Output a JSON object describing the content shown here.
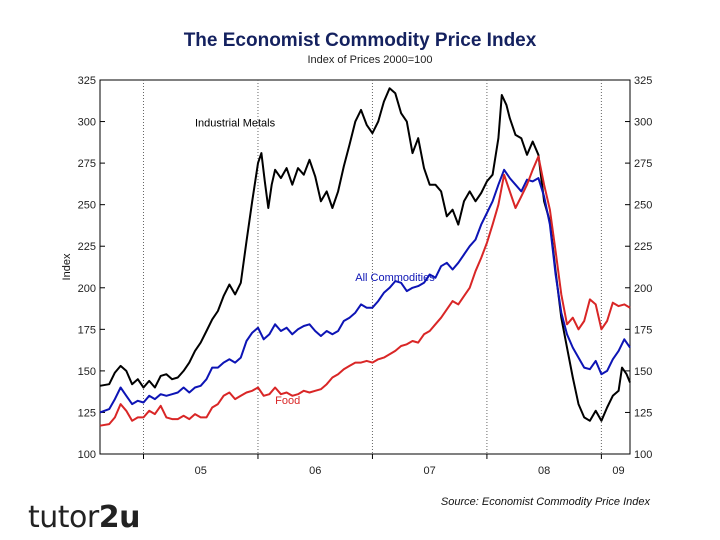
{
  "chart_data": {
    "type": "line",
    "title": "The Economist Commodity Price Index",
    "subtitle": "Index of Prices 2000=100",
    "ylabel": "Index",
    "xlabel": "",
    "ylim": [
      100,
      325
    ],
    "yticks": [
      100,
      125,
      150,
      175,
      200,
      225,
      250,
      275,
      300,
      325
    ],
    "xlim": [
      2004.62,
      2009.25
    ],
    "xtick_labels": [
      {
        "label": "05",
        "at": 2005.5
      },
      {
        "label": "06",
        "at": 2006.5
      },
      {
        "label": "07",
        "at": 2007.5
      },
      {
        "label": "08",
        "at": 2008.5
      },
      {
        "label": "09",
        "at": 2009.15
      }
    ],
    "year_boundaries": [
      2005,
      2006,
      2007,
      2008,
      2009
    ],
    "grid": false,
    "series": [
      {
        "name": "Industrial Metals",
        "label": "Industrial Metals",
        "color": "#000000",
        "points": [
          [
            2004.62,
            141
          ],
          [
            2004.7,
            142
          ],
          [
            2004.75,
            149
          ],
          [
            2004.8,
            153
          ],
          [
            2004.85,
            150
          ],
          [
            2004.9,
            142
          ],
          [
            2004.95,
            145
          ],
          [
            2005.0,
            140
          ],
          [
            2005.05,
            144
          ],
          [
            2005.1,
            140
          ],
          [
            2005.15,
            147
          ],
          [
            2005.2,
            148
          ],
          [
            2005.25,
            145
          ],
          [
            2005.3,
            146
          ],
          [
            2005.35,
            150
          ],
          [
            2005.4,
            155
          ],
          [
            2005.45,
            162
          ],
          [
            2005.5,
            167
          ],
          [
            2005.55,
            174
          ],
          [
            2005.6,
            181
          ],
          [
            2005.65,
            186
          ],
          [
            2005.7,
            195
          ],
          [
            2005.75,
            202
          ],
          [
            2005.8,
            196
          ],
          [
            2005.85,
            203
          ],
          [
            2005.9,
            228
          ],
          [
            2005.95,
            252
          ],
          [
            2006.0,
            275
          ],
          [
            2006.03,
            281
          ],
          [
            2006.06,
            264
          ],
          [
            2006.09,
            248
          ],
          [
            2006.12,
            262
          ],
          [
            2006.15,
            271
          ],
          [
            2006.2,
            266
          ],
          [
            2006.25,
            272
          ],
          [
            2006.3,
            262
          ],
          [
            2006.35,
            272
          ],
          [
            2006.4,
            268
          ],
          [
            2006.45,
            277
          ],
          [
            2006.5,
            267
          ],
          [
            2006.55,
            252
          ],
          [
            2006.6,
            258
          ],
          [
            2006.65,
            248
          ],
          [
            2006.7,
            258
          ],
          [
            2006.75,
            273
          ],
          [
            2006.8,
            286
          ],
          [
            2006.85,
            300
          ],
          [
            2006.9,
            307
          ],
          [
            2006.95,
            298
          ],
          [
            2007.0,
            293
          ],
          [
            2007.05,
            300
          ],
          [
            2007.1,
            312
          ],
          [
            2007.15,
            320
          ],
          [
            2007.2,
            317
          ],
          [
            2007.25,
            305
          ],
          [
            2007.3,
            300
          ],
          [
            2007.35,
            281
          ],
          [
            2007.4,
            290
          ],
          [
            2007.45,
            272
          ],
          [
            2007.5,
            262
          ],
          [
            2007.55,
            262
          ],
          [
            2007.6,
            258
          ],
          [
            2007.65,
            243
          ],
          [
            2007.7,
            247
          ],
          [
            2007.75,
            238
          ],
          [
            2007.8,
            252
          ],
          [
            2007.85,
            258
          ],
          [
            2007.9,
            252
          ],
          [
            2007.95,
            257
          ],
          [
            2008.0,
            264
          ],
          [
            2008.05,
            268
          ],
          [
            2008.1,
            290
          ],
          [
            2008.13,
            316
          ],
          [
            2008.17,
            310
          ],
          [
            2008.2,
            302
          ],
          [
            2008.25,
            292
          ],
          [
            2008.3,
            290
          ],
          [
            2008.35,
            280
          ],
          [
            2008.4,
            288
          ],
          [
            2008.45,
            280
          ],
          [
            2008.5,
            252
          ],
          [
            2008.55,
            240
          ],
          [
            2008.6,
            210
          ],
          [
            2008.65,
            182
          ],
          [
            2008.7,
            164
          ],
          [
            2008.75,
            146
          ],
          [
            2008.8,
            130
          ],
          [
            2008.85,
            122
          ],
          [
            2008.9,
            120
          ],
          [
            2008.95,
            126
          ],
          [
            2009.0,
            120
          ],
          [
            2009.05,
            128
          ],
          [
            2009.1,
            135
          ],
          [
            2009.15,
            138
          ],
          [
            2009.18,
            152
          ],
          [
            2009.22,
            148
          ],
          [
            2009.25,
            143
          ]
        ]
      },
      {
        "name": "All Commodities",
        "label": "All Commodities",
        "color": "#0d14b5",
        "points": [
          [
            2004.62,
            125
          ],
          [
            2004.7,
            127
          ],
          [
            2004.75,
            133
          ],
          [
            2004.8,
            140
          ],
          [
            2004.85,
            135
          ],
          [
            2004.9,
            130
          ],
          [
            2004.95,
            132
          ],
          [
            2005.0,
            131
          ],
          [
            2005.05,
            135
          ],
          [
            2005.1,
            133
          ],
          [
            2005.15,
            136
          ],
          [
            2005.2,
            135
          ],
          [
            2005.25,
            136
          ],
          [
            2005.3,
            137
          ],
          [
            2005.35,
            140
          ],
          [
            2005.4,
            137
          ],
          [
            2005.45,
            140
          ],
          [
            2005.5,
            141
          ],
          [
            2005.55,
            145
          ],
          [
            2005.6,
            152
          ],
          [
            2005.65,
            152
          ],
          [
            2005.7,
            155
          ],
          [
            2005.75,
            157
          ],
          [
            2005.8,
            155
          ],
          [
            2005.85,
            158
          ],
          [
            2005.9,
            168
          ],
          [
            2005.95,
            173
          ],
          [
            2006.0,
            176
          ],
          [
            2006.05,
            169
          ],
          [
            2006.1,
            172
          ],
          [
            2006.15,
            178
          ],
          [
            2006.2,
            174
          ],
          [
            2006.25,
            176
          ],
          [
            2006.3,
            172
          ],
          [
            2006.35,
            175
          ],
          [
            2006.4,
            177
          ],
          [
            2006.45,
            178
          ],
          [
            2006.5,
            174
          ],
          [
            2006.55,
            171
          ],
          [
            2006.6,
            174
          ],
          [
            2006.65,
            172
          ],
          [
            2006.7,
            174
          ],
          [
            2006.75,
            180
          ],
          [
            2006.8,
            182
          ],
          [
            2006.85,
            185
          ],
          [
            2006.9,
            190
          ],
          [
            2006.95,
            188
          ],
          [
            2007.0,
            188
          ],
          [
            2007.05,
            192
          ],
          [
            2007.1,
            197
          ],
          [
            2007.15,
            200
          ],
          [
            2007.2,
            204
          ],
          [
            2007.25,
            203
          ],
          [
            2007.3,
            198
          ],
          [
            2007.35,
            200
          ],
          [
            2007.4,
            201
          ],
          [
            2007.45,
            203
          ],
          [
            2007.5,
            208
          ],
          [
            2007.55,
            206
          ],
          [
            2007.6,
            213
          ],
          [
            2007.65,
            215
          ],
          [
            2007.7,
            211
          ],
          [
            2007.75,
            215
          ],
          [
            2007.8,
            220
          ],
          [
            2007.85,
            225
          ],
          [
            2007.9,
            229
          ],
          [
            2007.95,
            238
          ],
          [
            2008.0,
            245
          ],
          [
            2008.05,
            252
          ],
          [
            2008.1,
            262
          ],
          [
            2008.15,
            271
          ],
          [
            2008.2,
            266
          ],
          [
            2008.25,
            262
          ],
          [
            2008.3,
            258
          ],
          [
            2008.35,
            265
          ],
          [
            2008.4,
            264
          ],
          [
            2008.45,
            266
          ],
          [
            2008.5,
            255
          ],
          [
            2008.55,
            238
          ],
          [
            2008.6,
            208
          ],
          [
            2008.65,
            185
          ],
          [
            2008.7,
            172
          ],
          [
            2008.75,
            164
          ],
          [
            2008.8,
            158
          ],
          [
            2008.85,
            152
          ],
          [
            2008.9,
            151
          ],
          [
            2008.95,
            156
          ],
          [
            2009.0,
            148
          ],
          [
            2009.05,
            150
          ],
          [
            2009.1,
            157
          ],
          [
            2009.15,
            162
          ],
          [
            2009.2,
            169
          ],
          [
            2009.25,
            164
          ]
        ]
      },
      {
        "name": "Food",
        "label": "Food",
        "color": "#d92626",
        "points": [
          [
            2004.62,
            117
          ],
          [
            2004.7,
            118
          ],
          [
            2004.75,
            122
          ],
          [
            2004.8,
            130
          ],
          [
            2004.85,
            126
          ],
          [
            2004.9,
            120
          ],
          [
            2004.95,
            122
          ],
          [
            2005.0,
            122
          ],
          [
            2005.05,
            126
          ],
          [
            2005.1,
            124
          ],
          [
            2005.15,
            129
          ],
          [
            2005.2,
            122
          ],
          [
            2005.25,
            121
          ],
          [
            2005.3,
            121
          ],
          [
            2005.35,
            123
          ],
          [
            2005.4,
            121
          ],
          [
            2005.45,
            124
          ],
          [
            2005.5,
            122
          ],
          [
            2005.55,
            122
          ],
          [
            2005.6,
            128
          ],
          [
            2005.65,
            130
          ],
          [
            2005.7,
            135
          ],
          [
            2005.75,
            137
          ],
          [
            2005.8,
            133
          ],
          [
            2005.85,
            135
          ],
          [
            2005.9,
            137
          ],
          [
            2005.95,
            138
          ],
          [
            2006.0,
            140
          ],
          [
            2006.05,
            135
          ],
          [
            2006.1,
            136
          ],
          [
            2006.15,
            140
          ],
          [
            2006.2,
            136
          ],
          [
            2006.25,
            137
          ],
          [
            2006.3,
            135
          ],
          [
            2006.35,
            136
          ],
          [
            2006.4,
            138
          ],
          [
            2006.45,
            137
          ],
          [
            2006.5,
            138
          ],
          [
            2006.55,
            139
          ],
          [
            2006.6,
            142
          ],
          [
            2006.65,
            146
          ],
          [
            2006.7,
            148
          ],
          [
            2006.75,
            151
          ],
          [
            2006.8,
            153
          ],
          [
            2006.85,
            155
          ],
          [
            2006.9,
            155
          ],
          [
            2006.95,
            156
          ],
          [
            2007.0,
            155
          ],
          [
            2007.05,
            157
          ],
          [
            2007.1,
            158
          ],
          [
            2007.15,
            160
          ],
          [
            2007.2,
            162
          ],
          [
            2007.25,
            165
          ],
          [
            2007.3,
            166
          ],
          [
            2007.35,
            168
          ],
          [
            2007.4,
            167
          ],
          [
            2007.45,
            172
          ],
          [
            2007.5,
            174
          ],
          [
            2007.55,
            178
          ],
          [
            2007.6,
            182
          ],
          [
            2007.65,
            187
          ],
          [
            2007.7,
            192
          ],
          [
            2007.75,
            190
          ],
          [
            2007.8,
            195
          ],
          [
            2007.85,
            200
          ],
          [
            2007.9,
            210
          ],
          [
            2007.95,
            218
          ],
          [
            2008.0,
            227
          ],
          [
            2008.05,
            238
          ],
          [
            2008.1,
            250
          ],
          [
            2008.15,
            268
          ],
          [
            2008.2,
            258
          ],
          [
            2008.25,
            248
          ],
          [
            2008.3,
            255
          ],
          [
            2008.35,
            262
          ],
          [
            2008.4,
            271
          ],
          [
            2008.45,
            279
          ],
          [
            2008.5,
            262
          ],
          [
            2008.55,
            247
          ],
          [
            2008.6,
            222
          ],
          [
            2008.65,
            196
          ],
          [
            2008.7,
            178
          ],
          [
            2008.75,
            182
          ],
          [
            2008.8,
            175
          ],
          [
            2008.85,
            180
          ],
          [
            2008.9,
            193
          ],
          [
            2008.95,
            190
          ],
          [
            2009.0,
            175
          ],
          [
            2009.05,
            180
          ],
          [
            2009.1,
            191
          ],
          [
            2009.15,
            189
          ],
          [
            2009.2,
            190
          ],
          [
            2009.25,
            188
          ]
        ]
      }
    ]
  },
  "source_note": "Source: Economist Commodity Price Index",
  "logo": {
    "prefix": "tutor",
    "accent": "2u"
  }
}
